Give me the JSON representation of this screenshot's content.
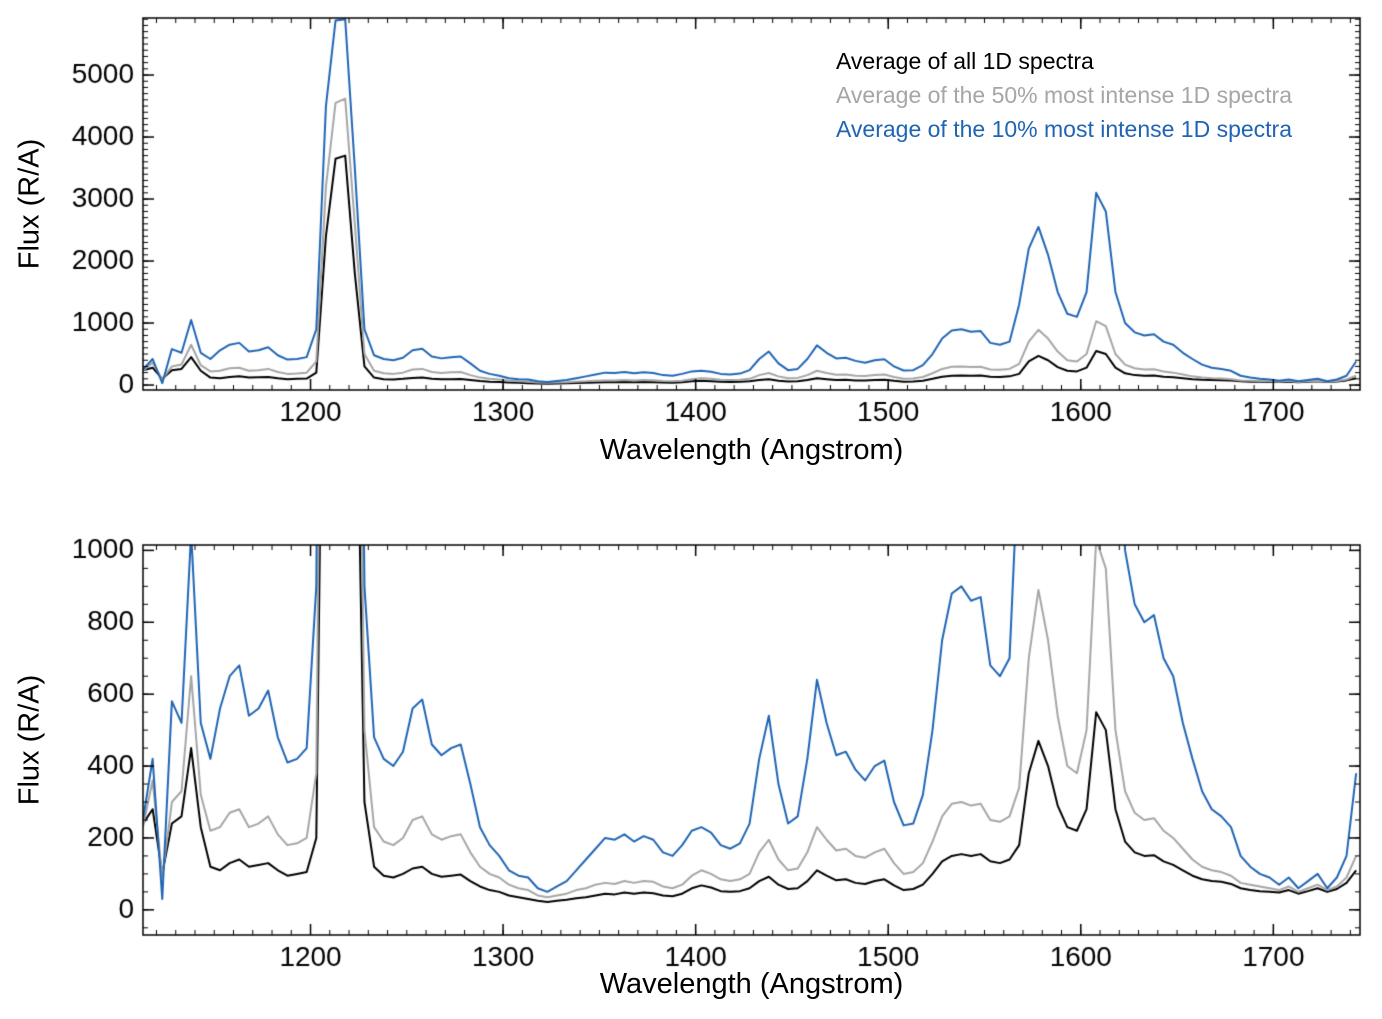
{
  "figure": {
    "background": "#ffffff"
  },
  "chart_data": [
    {
      "type": "line",
      "title": "",
      "xlabel": "Wavelength (Angstrom)",
      "ylabel": "Flux (R/A)",
      "xlim": [
        1113,
        1745
      ],
      "ylim": [
        -80,
        5920
      ],
      "xticks": [
        1200,
        1300,
        1400,
        1500,
        1600,
        1700
      ],
      "yticks": [
        0,
        1000,
        2000,
        3000,
        4000,
        5000
      ],
      "x_minor_step": 10,
      "y_minor_step": 100,
      "grid": false,
      "legend": {
        "position": "inside-top-right"
      },
      "x_start": 1113,
      "x_step": 5,
      "series": [
        {
          "name": "Average of all 1D spectra",
          "color": "#000000",
          "values": [
            240,
            280,
            100,
            240,
            260,
            450,
            230,
            120,
            110,
            130,
            140,
            120,
            125,
            130,
            110,
            95,
            100,
            105,
            200,
            2400,
            3650,
            3700,
            1800,
            300,
            120,
            95,
            90,
            100,
            115,
            120,
            100,
            92,
            95,
            98,
            80,
            65,
            55,
            50,
            40,
            35,
            30,
            25,
            22,
            25,
            28,
            32,
            35,
            40,
            45,
            43,
            48,
            45,
            48,
            46,
            40,
            38,
            45,
            60,
            68,
            62,
            52,
            50,
            52,
            60,
            80,
            92,
            70,
            58,
            60,
            80,
            110,
            95,
            82,
            85,
            75,
            72,
            80,
            85,
            68,
            55,
            58,
            70,
            100,
            135,
            150,
            155,
            150,
            155,
            135,
            130,
            140,
            180,
            380,
            470,
            400,
            290,
            230,
            220,
            280,
            550,
            500,
            280,
            190,
            160,
            150,
            152,
            135,
            125,
            110,
            95,
            85,
            80,
            78,
            72,
            60,
            55,
            52,
            50,
            48,
            55,
            45,
            52,
            60,
            50,
            58,
            75,
            110
          ]
        },
        {
          "name": "Average of the 50% most intense 1D spectra",
          "color": "#a6a6a6",
          "values": [
            230,
            360,
            90,
            300,
            330,
            650,
            320,
            220,
            230,
            270,
            280,
            230,
            240,
            260,
            210,
            180,
            185,
            200,
            380,
            3200,
            4550,
            4620,
            2600,
            500,
            230,
            190,
            180,
            200,
            250,
            260,
            210,
            195,
            205,
            210,
            160,
            120,
            100,
            90,
            70,
            60,
            55,
            40,
            35,
            40,
            45,
            55,
            60,
            70,
            75,
            72,
            80,
            75,
            80,
            78,
            65,
            60,
            70,
            95,
            110,
            100,
            85,
            80,
            85,
            100,
            160,
            195,
            140,
            110,
            115,
            160,
            230,
            195,
            165,
            170,
            150,
            145,
            160,
            170,
            130,
            100,
            105,
            130,
            190,
            260,
            295,
            300,
            290,
            295,
            250,
            245,
            260,
            340,
            700,
            890,
            750,
            540,
            400,
            380,
            500,
            1030,
            950,
            500,
            330,
            270,
            250,
            255,
            220,
            200,
            170,
            140,
            120,
            110,
            105,
            95,
            75,
            70,
            65,
            60,
            55,
            65,
            50,
            60,
            70,
            55,
            65,
            90,
            150
          ]
        },
        {
          "name": "Average of the 10% most intense 1D spectra",
          "color": "#2065b4",
          "values": [
            250,
            420,
            30,
            580,
            520,
            1050,
            520,
            420,
            560,
            650,
            680,
            540,
            560,
            610,
            480,
            410,
            420,
            450,
            900,
            4500,
            5880,
            5900,
            3500,
            900,
            480,
            420,
            400,
            440,
            560,
            585,
            460,
            430,
            450,
            460,
            350,
            230,
            180,
            150,
            110,
            95,
            90,
            60,
            50,
            65,
            80,
            110,
            140,
            170,
            200,
            195,
            210,
            190,
            205,
            195,
            160,
            150,
            180,
            220,
            230,
            215,
            180,
            170,
            185,
            240,
            420,
            540,
            350,
            240,
            260,
            420,
            640,
            520,
            430,
            440,
            390,
            360,
            400,
            415,
            300,
            235,
            240,
            320,
            500,
            750,
            880,
            900,
            860,
            870,
            680,
            650,
            700,
            1300,
            2200,
            2550,
            2100,
            1500,
            1150,
            1100,
            1500,
            3100,
            2800,
            1500,
            1000,
            850,
            800,
            820,
            700,
            650,
            520,
            420,
            330,
            280,
            260,
            230,
            150,
            120,
            100,
            90,
            70,
            90,
            60,
            80,
            100,
            60,
            90,
            150,
            380
          ]
        }
      ]
    },
    {
      "type": "line",
      "title": "",
      "xlabel": "Wavelength (Angstrom)",
      "ylabel": "Flux (R/A)",
      "xlim": [
        1113,
        1745
      ],
      "ylim": [
        -70,
        1015
      ],
      "xticks": [
        1200,
        1300,
        1400,
        1500,
        1600,
        1700
      ],
      "yticks": [
        0,
        200,
        400,
        600,
        800,
        1000
      ],
      "x_minor_step": 10,
      "y_minor_step": 50,
      "grid": false,
      "legend": null,
      "series_ref": 0
    }
  ]
}
